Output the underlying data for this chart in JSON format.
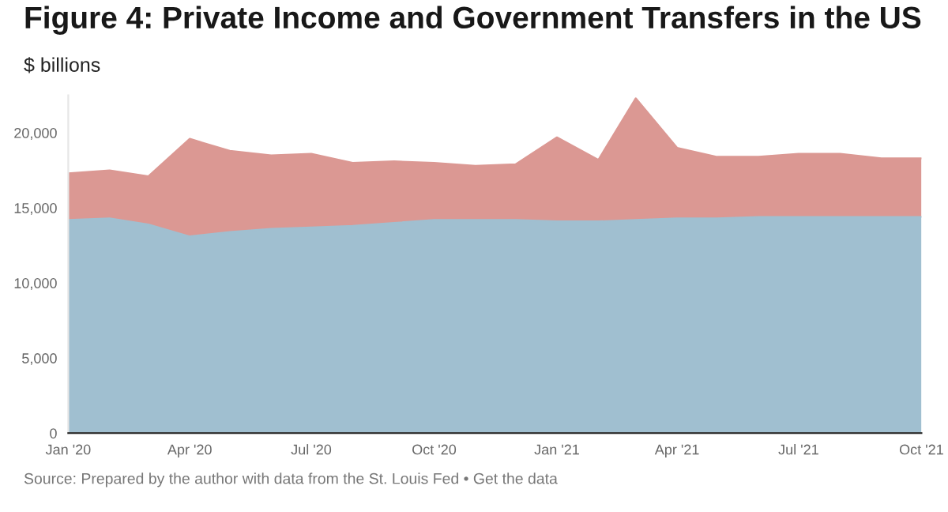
{
  "chart_data": {
    "type": "area",
    "stacked": true,
    "title": "Figure 4: Private Income and Government Transfers in the US",
    "subtitle": "$ billions",
    "annotations": [
      "Source: Prepared by the author with data from the St. Louis Fed • Get the data"
    ],
    "x": [
      "2020-01",
      "2020-02",
      "2020-03",
      "2020-04",
      "2020-05",
      "2020-06",
      "2020-07",
      "2020-08",
      "2020-09",
      "2020-10",
      "2020-11",
      "2020-12",
      "2021-01",
      "2021-02",
      "2021-03",
      "2021-04",
      "2021-05",
      "2021-06",
      "2021-07",
      "2021-08",
      "2021-09",
      "2021-10"
    ],
    "series": [
      {
        "color": "#a0bfd0",
        "values": [
          14200,
          14300,
          13900,
          13100,
          13400,
          13600,
          13700,
          13800,
          14000,
          14200,
          14200,
          14200,
          14100,
          14100,
          14200,
          14300,
          14300,
          14400,
          14400,
          14400,
          14400,
          14400
        ]
      },
      {
        "color": "#db9893",
        "values": [
          3100,
          3200,
          3200,
          6500,
          5400,
          4900,
          4900,
          4200,
          4100,
          3800,
          3600,
          3700,
          5600,
          4100,
          8100,
          4700,
          4100,
          4000,
          4200,
          4200,
          3900,
          3900
        ]
      }
    ],
    "xlim": [
      "2020-01",
      "2021-10"
    ],
    "xticks": [
      {
        "value": "2020-01",
        "label": "Jan '20"
      },
      {
        "value": "2020-04",
        "label": "Apr '20"
      },
      {
        "value": "2020-07",
        "label": "Jul '20"
      },
      {
        "value": "2020-10",
        "label": "Oct '20"
      },
      {
        "value": "2021-01",
        "label": "Jan '21"
      },
      {
        "value": "2021-04",
        "label": "Apr '21"
      },
      {
        "value": "2021-07",
        "label": "Jul '21"
      },
      {
        "value": "2021-10",
        "label": "Oct '21"
      }
    ],
    "yticks": [
      0,
      {
        "value": 5000,
        "label": "5,000"
      },
      {
        "value": 10000,
        "label": "10,000"
      },
      {
        "value": 15000,
        "label": "15,000"
      },
      {
        "value": 20000,
        "label": "20,000"
      }
    ],
    "ylim": [
      0,
      22500
    ],
    "grid": false,
    "legend": false
  }
}
